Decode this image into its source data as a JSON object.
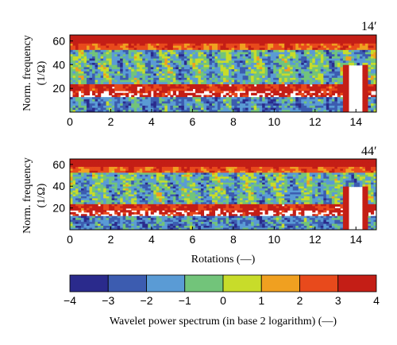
{
  "chart_data": {
    "type": "heatmap",
    "colors": [
      "#2a2a8c",
      "#3c5cb0",
      "#5a9bd5",
      "#72c47a",
      "#c8dc2a",
      "#f0a020",
      "#e84a1c",
      "#c41e16"
    ],
    "colorbar": {
      "ticks": [
        "−4",
        "−3",
        "−2",
        "−1",
        "0",
        "1",
        "2",
        "3",
        "4"
      ],
      "range": [
        -4,
        4
      ],
      "label": "Wavelet power spectrum (in base 2 logarithm) (—)"
    },
    "panels": [
      {
        "label": "14′",
        "ylabel_line1": "Norm. frequency",
        "ylabel_line2": "(1/Ω)",
        "xlim": [
          0,
          15
        ],
        "ylim": [
          0,
          65
        ],
        "yticks": [
          "20",
          "40",
          "60"
        ],
        "xticks": [
          "0",
          "2",
          "4",
          "6",
          "8",
          "10",
          "12",
          "14"
        ]
      },
      {
        "label": "44′",
        "ylabel_line1": "Norm. frequency",
        "ylabel_line2": "(1/Ω)",
        "xlim": [
          0,
          15
        ],
        "ylim": [
          0,
          65
        ],
        "yticks": [
          "20",
          "40",
          "60"
        ],
        "xticks": [
          "0",
          "2",
          "4",
          "6",
          "8",
          "10",
          "12",
          "14"
        ]
      }
    ],
    "xlabel": "Rotations (—)"
  }
}
